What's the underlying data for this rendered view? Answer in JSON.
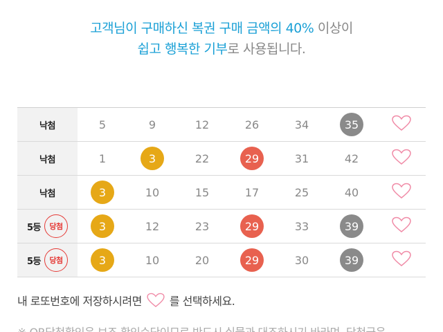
{
  "intro": {
    "line1_highlight": "고객님이 구매하신 복권 구매 금액의 40%",
    "line1_rest": " 이상이",
    "line2_highlight": "쉽고 행복한 기부",
    "line2_rest": "로 사용됩니다."
  },
  "colors": {
    "highlight": "#1aa0d6",
    "ball_yellow": "#e6a817",
    "ball_red": "#e8614f",
    "ball_gray": "#8a8a8a",
    "heart": "#f08aa6",
    "win_badge": "#e53935"
  },
  "rows": [
    {
      "rank": "낙첨",
      "badge": "",
      "numbers": [
        {
          "v": "5",
          "c": ""
        },
        {
          "v": "9",
          "c": ""
        },
        {
          "v": "12",
          "c": ""
        },
        {
          "v": "26",
          "c": ""
        },
        {
          "v": "34",
          "c": ""
        },
        {
          "v": "35",
          "c": "gray"
        }
      ]
    },
    {
      "rank": "낙첨",
      "badge": "",
      "numbers": [
        {
          "v": "1",
          "c": ""
        },
        {
          "v": "3",
          "c": "yellow"
        },
        {
          "v": "22",
          "c": ""
        },
        {
          "v": "29",
          "c": "red"
        },
        {
          "v": "31",
          "c": ""
        },
        {
          "v": "42",
          "c": ""
        }
      ]
    },
    {
      "rank": "낙첨",
      "badge": "",
      "numbers": [
        {
          "v": "3",
          "c": "yellow"
        },
        {
          "v": "10",
          "c": ""
        },
        {
          "v": "15",
          "c": ""
        },
        {
          "v": "17",
          "c": ""
        },
        {
          "v": "25",
          "c": ""
        },
        {
          "v": "40",
          "c": ""
        }
      ]
    },
    {
      "rank": "5등",
      "badge": "당첨",
      "numbers": [
        {
          "v": "3",
          "c": "yellow"
        },
        {
          "v": "12",
          "c": ""
        },
        {
          "v": "23",
          "c": ""
        },
        {
          "v": "29",
          "c": "red"
        },
        {
          "v": "33",
          "c": ""
        },
        {
          "v": "39",
          "c": "gray"
        }
      ]
    },
    {
      "rank": "5등",
      "badge": "당첨",
      "numbers": [
        {
          "v": "3",
          "c": "yellow"
        },
        {
          "v": "10",
          "c": ""
        },
        {
          "v": "20",
          "c": ""
        },
        {
          "v": "29",
          "c": "red"
        },
        {
          "v": "30",
          "c": ""
        },
        {
          "v": "39",
          "c": "gray"
        }
      ]
    }
  ],
  "save_hint": {
    "before": "내 로또번호에 저장하시려면",
    "after": "를 선택하세요.",
    "icon": "heart-outline-icon"
  },
  "notice": "※ QR당첨확인은 보조 확인수단이므로 반드시 실물과 대조하시기 바라며, 당첨금은"
}
